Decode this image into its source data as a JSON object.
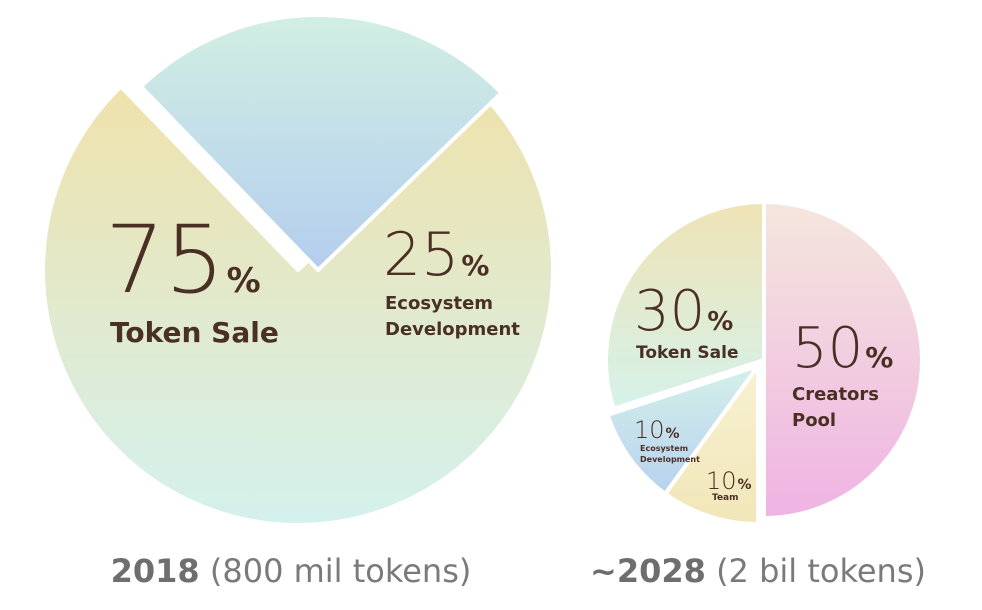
{
  "chart_data": [
    {
      "type": "pie",
      "caption": {
        "year": "2018",
        "detail": " (800 mil tokens)"
      },
      "slices": [
        {
          "label_lines": [
            "Token Sale"
          ],
          "value": 75,
          "pct_text": "75",
          "color_start": "#efe2ab",
          "color_end": "#d4f1ee"
        },
        {
          "label_lines": [
            "Ecosystem",
            "Development"
          ],
          "value": 25,
          "pct_text": "25",
          "color_start": "#d1efe3",
          "color_end": "#b4cdee"
        }
      ]
    },
    {
      "type": "pie",
      "caption": {
        "year": "~2028",
        "detail": " (2 bil tokens)"
      },
      "slices": [
        {
          "label_lines": [
            "Creators",
            "Pool"
          ],
          "value": 50,
          "pct_text": "50",
          "color_start": "#f4e7dd",
          "color_end": "#efb3e3"
        },
        {
          "label_lines": [
            "Team"
          ],
          "value": 10,
          "pct_text": "10",
          "color_start": "#f8f2d2",
          "color_end": "#f1e6b8"
        },
        {
          "label_lines": [
            "Ecosystem",
            "Development"
          ],
          "value": 10,
          "pct_text": "10",
          "color_start": "#d4f0e8",
          "color_end": "#b8d1f0"
        },
        {
          "label_lines": [
            "Token Sale"
          ],
          "value": 30,
          "pct_text": "30",
          "color_start": "#efe3b5",
          "color_end": "#d5f2ea"
        }
      ]
    }
  ],
  "percent_symbol": "%"
}
